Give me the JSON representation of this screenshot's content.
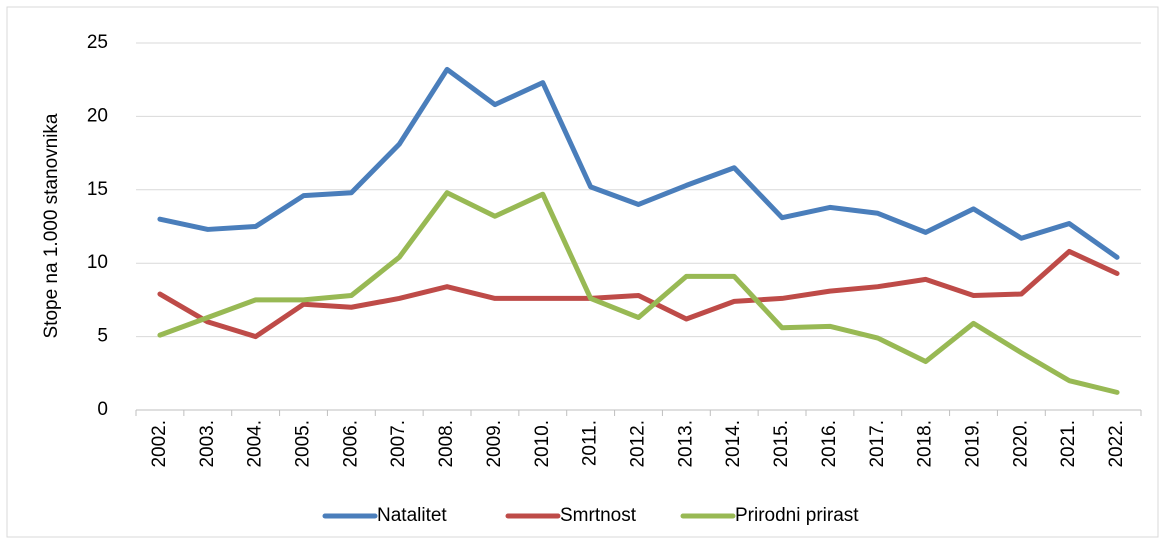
{
  "chart_data": {
    "type": "line",
    "y_label": "Stope na 1.000 stanovnika",
    "categories": [
      "2002.",
      "2003.",
      "2004.",
      "2005.",
      "2006.",
      "2007.",
      "2008.",
      "2009.",
      "2010.",
      "2011.",
      "2012.",
      "2013.",
      "2014.",
      "2015.",
      "2016.",
      "2017.",
      "2018.",
      "2019.",
      "2020.",
      "2021.",
      "2022."
    ],
    "series": [
      {
        "name": "Natalitet",
        "color": "#4a7ebb",
        "values": [
          13.0,
          12.3,
          12.5,
          14.6,
          14.8,
          18.1,
          23.2,
          20.8,
          22.3,
          15.2,
          14.0,
          15.3,
          16.5,
          13.1,
          13.8,
          13.4,
          12.1,
          13.7,
          11.7,
          12.7,
          10.4
        ]
      },
      {
        "name": "Smrtnost",
        "color": "#be4b48",
        "values": [
          7.9,
          6.0,
          5.0,
          7.2,
          7.0,
          7.6,
          8.4,
          7.6,
          7.6,
          7.6,
          7.8,
          6.2,
          7.4,
          7.6,
          8.1,
          8.4,
          8.9,
          7.8,
          7.9,
          10.8,
          9.3
        ]
      },
      {
        "name": "Prirodni prirast",
        "color": "#98b954",
        "values": [
          5.1,
          6.3,
          7.5,
          7.5,
          7.8,
          10.4,
          14.8,
          13.2,
          14.7,
          7.6,
          6.3,
          9.1,
          9.1,
          5.6,
          5.7,
          4.9,
          3.3,
          5.9,
          3.9,
          2.0,
          1.2
        ]
      }
    ],
    "ylim": [
      0,
      25
    ],
    "yticks": [
      0,
      5,
      10,
      15,
      20,
      25
    ],
    "grid": true,
    "legend": "bottom"
  }
}
